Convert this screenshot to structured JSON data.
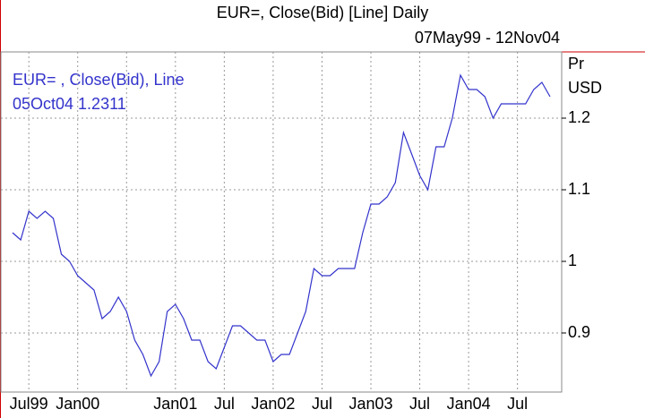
{
  "chart_data": {
    "type": "line",
    "title": "EUR=, Close(Bid) [Line] Daily",
    "subtitle": "07May99 - 12Nov04",
    "legend": [
      "EUR= , Close(Bid), Line",
      "05Oct04 1.2311"
    ],
    "ylabel": [
      "Pr",
      "USD"
    ],
    "categories": [
      null,
      null,
      "Jul99",
      null,
      null,
      null,
      null,
      null,
      "Jan00",
      null,
      null,
      null,
      null,
      null,
      null,
      null,
      null,
      null,
      null,
      null,
      "Jan01",
      null,
      null,
      null,
      null,
      null,
      "Jul",
      null,
      null,
      null,
      null,
      null,
      "Jan02",
      null,
      null,
      null,
      null,
      null,
      "Jul",
      null,
      null,
      null,
      null,
      null,
      "Jan03",
      null,
      null,
      null,
      null,
      null,
      "Jul",
      null,
      null,
      null,
      null,
      null,
      "Jan04",
      null,
      null,
      null,
      null,
      null,
      "Jul",
      null,
      null,
      null,
      null
    ],
    "series": [
      {
        "name": "EUR= , Close(Bid), Line",
        "color": "#3333cc",
        "values": [
          1.04,
          1.03,
          1.07,
          1.06,
          1.07,
          1.06,
          1.01,
          1.0,
          0.98,
          0.97,
          0.96,
          0.92,
          0.93,
          0.95,
          0.93,
          0.89,
          0.87,
          0.84,
          0.86,
          0.93,
          0.94,
          0.92,
          0.89,
          0.89,
          0.86,
          0.85,
          0.88,
          0.91,
          0.91,
          0.9,
          0.89,
          0.89,
          0.86,
          0.87,
          0.87,
          0.9,
          0.93,
          0.99,
          0.98,
          0.98,
          0.99,
          0.99,
          0.99,
          1.04,
          1.08,
          1.08,
          1.09,
          1.11,
          1.18,
          1.15,
          1.12,
          1.1,
          1.16,
          1.16,
          1.2,
          1.26,
          1.24,
          1.24,
          1.23,
          1.2,
          1.22,
          1.22,
          1.22,
          1.22,
          1.24,
          1.25,
          1.23
        ]
      }
    ],
    "ylim": [
      0.8175,
      1.2925
    ],
    "yticks": [
      0.9,
      1,
      1.1,
      1.2
    ],
    "grid": true
  }
}
